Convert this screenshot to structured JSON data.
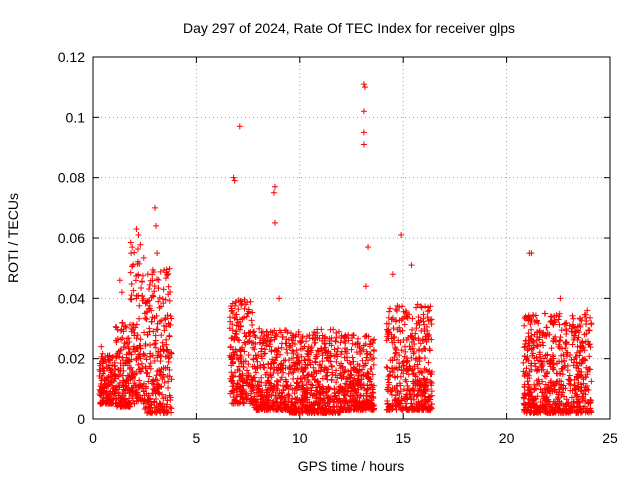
{
  "chart_data": {
    "type": "scatter",
    "title": "Day 297 of 2024, Rate Of TEC Index for receiver glps",
    "xlabel": "GPS time / hours",
    "ylabel": "ROTI / TECUs",
    "xlim": [
      0,
      25
    ],
    "ylim": [
      0,
      0.12
    ],
    "xticks": [
      0,
      5,
      10,
      15,
      20,
      25
    ],
    "xtick_labels": [
      "0",
      "5",
      "10",
      "15",
      "20",
      "25"
    ],
    "yticks": [
      0,
      0.02,
      0.04,
      0.06,
      0.08,
      0.1,
      0.12
    ],
    "ytick_labels": [
      "0",
      "0.02",
      "0.04",
      "0.06",
      "0.08",
      "0.1",
      "0.12"
    ],
    "grid": true,
    "marker": "+",
    "series": [
      {
        "name": "ROTI",
        "color": "#ff0000",
        "clusters": [
          {
            "x_start": 0.3,
            "x_end": 1.1,
            "y_min": 0.005,
            "y_max": 0.022
          },
          {
            "x_start": 1.1,
            "x_end": 1.8,
            "y_min": 0.004,
            "y_max": 0.032
          },
          {
            "x_start": 1.8,
            "x_end": 2.5,
            "y_min": 0.005,
            "y_max": 0.063
          },
          {
            "x_start": 2.5,
            "x_end": 3.8,
            "y_min": 0.002,
            "y_max": 0.05
          },
          {
            "x_start": 6.6,
            "x_end": 7.8,
            "y_min": 0.005,
            "y_max": 0.04
          },
          {
            "x_start": 7.8,
            "x_end": 9.5,
            "y_min": 0.003,
            "y_max": 0.03
          },
          {
            "x_start": 9.5,
            "x_end": 12.0,
            "y_min": 0.002,
            "y_max": 0.03
          },
          {
            "x_start": 12.0,
            "x_end": 13.6,
            "y_min": 0.003,
            "y_max": 0.028
          },
          {
            "x_start": 14.2,
            "x_end": 16.4,
            "y_min": 0.003,
            "y_max": 0.038
          },
          {
            "x_start": 20.8,
            "x_end": 24.1,
            "y_min": 0.002,
            "y_max": 0.035
          }
        ],
        "highlights": [
          {
            "x": 0.4,
            "y": 0.024
          },
          {
            "x": 1.3,
            "y": 0.046
          },
          {
            "x": 1.4,
            "y": 0.042
          },
          {
            "x": 2.1,
            "y": 0.063
          },
          {
            "x": 2.2,
            "y": 0.061
          },
          {
            "x": 3.0,
            "y": 0.07
          },
          {
            "x": 3.05,
            "y": 0.064
          },
          {
            "x": 3.1,
            "y": 0.055
          },
          {
            "x": 3.6,
            "y": 0.048
          },
          {
            "x": 6.8,
            "y": 0.08
          },
          {
            "x": 6.85,
            "y": 0.079
          },
          {
            "x": 7.1,
            "y": 0.097
          },
          {
            "x": 8.8,
            "y": 0.077
          },
          {
            "x": 8.75,
            "y": 0.075
          },
          {
            "x": 8.8,
            "y": 0.065
          },
          {
            "x": 9.0,
            "y": 0.04
          },
          {
            "x": 13.1,
            "y": 0.111
          },
          {
            "x": 13.15,
            "y": 0.11
          },
          {
            "x": 13.1,
            "y": 0.102
          },
          {
            "x": 13.1,
            "y": 0.095
          },
          {
            "x": 13.1,
            "y": 0.091
          },
          {
            "x": 13.3,
            "y": 0.057
          },
          {
            "x": 13.2,
            "y": 0.044
          },
          {
            "x": 14.9,
            "y": 0.061
          },
          {
            "x": 15.4,
            "y": 0.051
          },
          {
            "x": 14.5,
            "y": 0.048
          },
          {
            "x": 21.1,
            "y": 0.055
          },
          {
            "x": 21.2,
            "y": 0.055
          },
          {
            "x": 22.6,
            "y": 0.04
          },
          {
            "x": 23.9,
            "y": 0.036
          }
        ]
      }
    ]
  }
}
